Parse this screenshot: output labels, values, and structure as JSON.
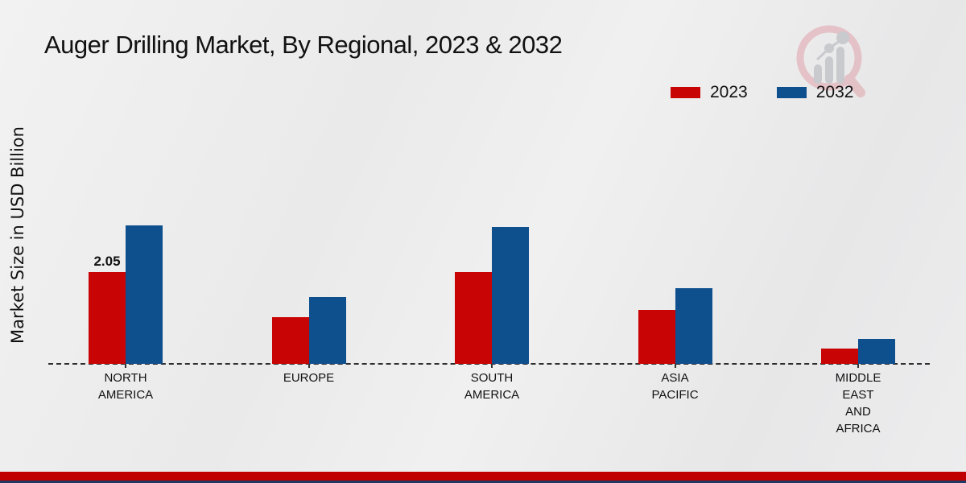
{
  "title": "Auger Drilling Market, By Regional, 2023 & 2032",
  "legend": [
    {
      "label": "2023",
      "color": "#c90404"
    },
    {
      "label": "2032",
      "color": "#0e4f8e"
    }
  ],
  "watermark_icon": "magnifier-bar-chart-logo",
  "chart_data": {
    "type": "bar",
    "title": "Auger Drilling Market, By Regional, 2023 & 2032",
    "ylabel": "Market Size in USD Billion",
    "xlabel": "",
    "categories": [
      "NORTH AMERICA",
      "EUROPE",
      "SOUTH AMERICA",
      "ASIA PACIFIC",
      "MIDDLE EAST AND AFRICA"
    ],
    "category_lines": [
      [
        "NORTH",
        "AMERICA"
      ],
      [
        "EUROPE"
      ],
      [
        "SOUTH",
        "AMERICA"
      ],
      [
        "ASIA",
        "PACIFIC"
      ],
      [
        "MIDDLE",
        "EAST",
        "AND",
        "AFRICA"
      ]
    ],
    "series": [
      {
        "name": "2023",
        "color": "#c90404",
        "values": [
          2.05,
          1.05,
          2.05,
          1.2,
          0.35
        ]
      },
      {
        "name": "2032",
        "color": "#0e4f8e",
        "values": [
          3.1,
          1.5,
          3.05,
          1.7,
          0.55
        ]
      }
    ],
    "data_labels": [
      {
        "series_index": 0,
        "category_index": 0,
        "text": "2.05"
      }
    ],
    "ylim": [
      0,
      3.6
    ],
    "grid": false,
    "legend_position": "top-right",
    "baseline_style": "dashed"
  },
  "footer": {
    "red_band_color": "#c00000",
    "navy_band_color": "#1f3864"
  }
}
